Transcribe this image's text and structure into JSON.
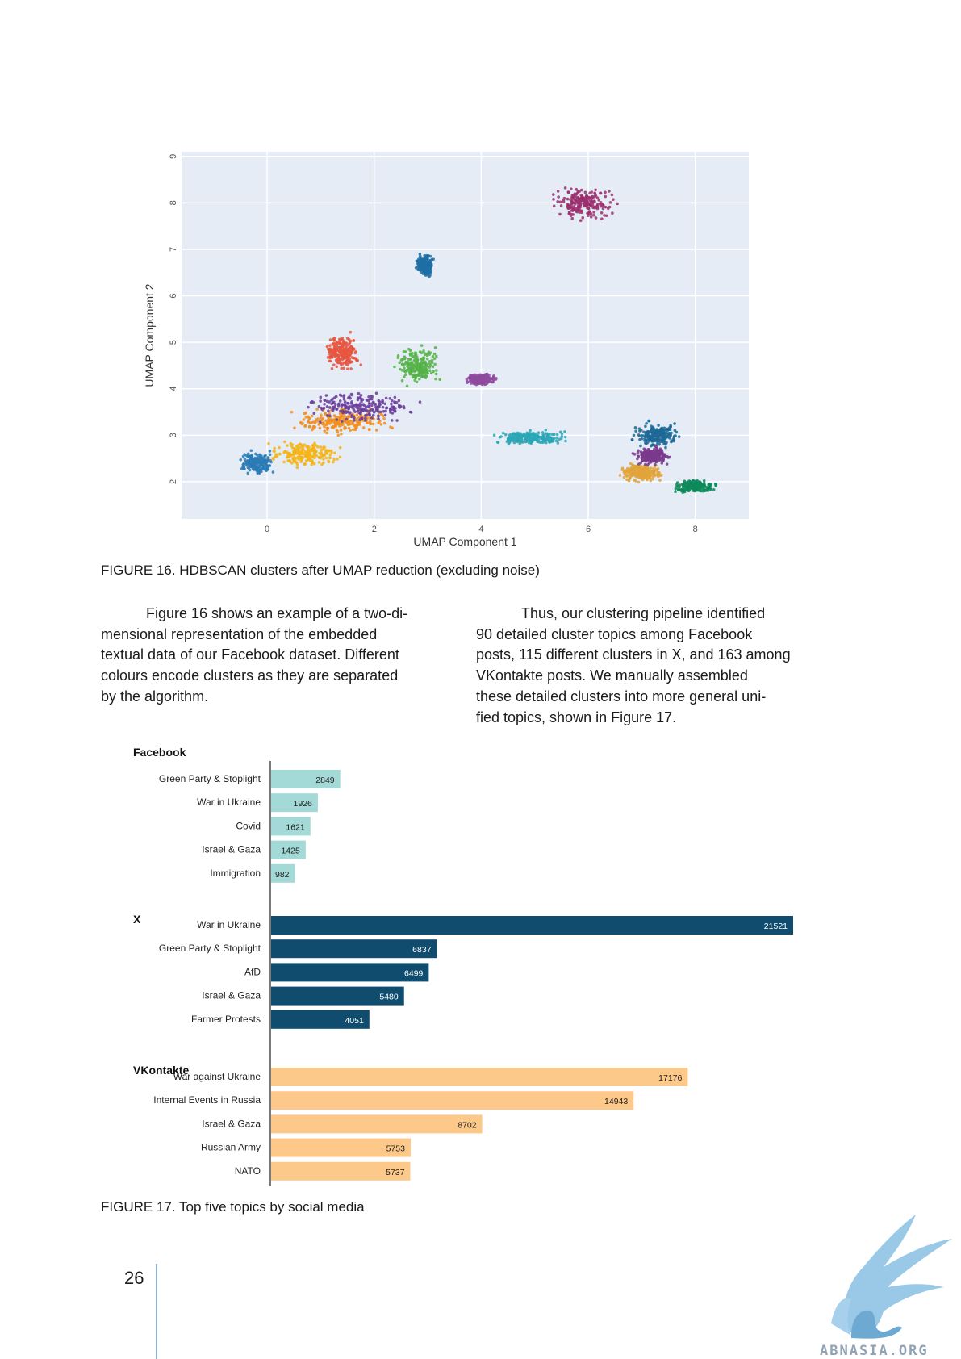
{
  "figure16": {
    "caption": "FIGURE 16. HDBSCAN clusters after UMAP reduction (excluding noise)",
    "chart_data": {
      "type": "scatter",
      "xlabel": "UMAP Component 1",
      "ylabel": "UMAP Component 2",
      "xlim": [
        -1.6,
        9.0
      ],
      "ylim": [
        1.2,
        9.1
      ],
      "xticks": [
        0,
        2,
        4,
        6,
        8
      ],
      "yticks": [
        2,
        3,
        4,
        5,
        6,
        7,
        8,
        9
      ],
      "grid": true,
      "background": "#e5ecf6",
      "clusters": [
        {
          "color": "#9b2f6e",
          "center": [
            5.9,
            8.0
          ],
          "spread": [
            0.45,
            0.25
          ]
        },
        {
          "color": "#1f6fa6",
          "center": [
            2.95,
            6.65
          ],
          "spread": [
            0.12,
            0.18
          ]
        },
        {
          "color": "#f28e1c",
          "center": [
            1.4,
            3.3
          ],
          "spread": [
            0.7,
            0.22
          ]
        },
        {
          "color": "#f5b417",
          "center": [
            0.7,
            2.6
          ],
          "spread": [
            0.5,
            0.22
          ]
        },
        {
          "color": "#0e8a5a",
          "center": [
            8.0,
            1.9
          ],
          "spread": [
            0.3,
            0.1
          ]
        },
        {
          "color": "#2ba6b5",
          "center": [
            4.9,
            2.95
          ],
          "spread": [
            0.5,
            0.12
          ]
        },
        {
          "color": "#6a3d9a",
          "center": [
            1.8,
            3.6
          ],
          "spread": [
            0.8,
            0.25
          ]
        },
        {
          "color": "#2c7bb6",
          "center": [
            -0.2,
            2.4
          ],
          "spread": [
            0.25,
            0.2
          ]
        },
        {
          "color": "#e8553e",
          "center": [
            1.4,
            4.8
          ],
          "spread": [
            0.25,
            0.3
          ]
        },
        {
          "color": "#55b347",
          "center": [
            2.8,
            4.5
          ],
          "spread": [
            0.3,
            0.3
          ]
        },
        {
          "color": "#8e4a9e",
          "center": [
            4.0,
            4.2
          ],
          "spread": [
            0.2,
            0.1
          ]
        },
        {
          "color": "#1d6996",
          "center": [
            7.3,
            3.0
          ],
          "spread": [
            0.35,
            0.2
          ]
        },
        {
          "color": "#e2a33a",
          "center": [
            7.0,
            2.2
          ],
          "spread": [
            0.3,
            0.15
          ]
        },
        {
          "color": "#7a3a8c",
          "center": [
            7.2,
            2.55
          ],
          "spread": [
            0.25,
            0.15
          ]
        }
      ]
    }
  },
  "para_left": "Figure 16 shows an example of a two-di-mensional representation of the embedded textual data of our Facebook dataset. Different colours encode clusters as they are separated by the algorithm.",
  "para_left_lines": [
    "Figure 16 shows an example of a two-di-",
    "mensional representation of the embedded",
    "textual data of our Facebook dataset. Different",
    "colours encode clusters as they are separated",
    "by the algorithm."
  ],
  "para_right_lines": [
    "Thus, our clustering pipeline identified",
    "90 detailed cluster topics among Facebook",
    "posts, 115 different clusters in X, and 163 among",
    "VKontakte posts. We manually assembled",
    "these detailed clusters into more general uni-",
    "fied topics, shown in Figure 17."
  ],
  "figure17": {
    "caption": "FIGURE 17. Top five topics by social media",
    "chart_data": {
      "type": "bar",
      "orientation": "horizontal",
      "xlim": [
        0,
        21521
      ],
      "groups": [
        {
          "name": "Facebook",
          "color": "#a3d9d6",
          "categories": [
            "Green Party & Stoplight",
            "War in Ukraine",
            "Covid",
            "Israel & Gaza",
            "Immigration"
          ],
          "values": [
            2849,
            1926,
            1621,
            1425,
            982
          ]
        },
        {
          "name": "X",
          "color": "#0f4c6e",
          "categories": [
            "War in Ukraine",
            "Green Party & Stoplight",
            "AfD",
            "Israel & Gaza",
            "Farmer Protests"
          ],
          "values": [
            21521,
            6837,
            6499,
            5480,
            4051
          ]
        },
        {
          "name": "VKontakte",
          "color": "#fdc98a",
          "categories": [
            "War against Ukraine",
            "Internal Events in Russia",
            "Israel & Gaza",
            "Russian Army",
            "NATO"
          ],
          "values": [
            17176,
            14943,
            8702,
            5753,
            5737
          ]
        }
      ]
    }
  },
  "page_number": "26",
  "logo_text": "ABNASIA.ORG"
}
